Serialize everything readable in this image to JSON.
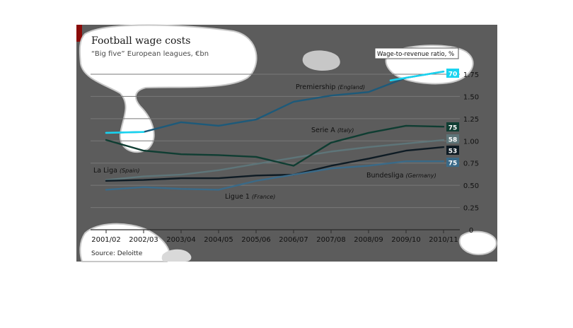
{
  "chart_data": {
    "type": "line",
    "title": "Football wage costs",
    "subtitle": "“Big five” European leagues, €bn",
    "source": "Source: Deloitte",
    "legend_note": "Wage-to-revenue ratio, %",
    "categories": [
      "2001/02",
      "2002/03",
      "2003/04",
      "2004/05",
      "2005/06",
      "2006/07",
      "2007/08",
      "2008/09",
      "2009/10",
      "2010/11"
    ],
    "ylim": [
      0,
      1.75
    ],
    "yticks": [
      "0",
      "0.25",
      "0.50",
      "0.75",
      "1.00",
      "1.25",
      "1.50",
      "1.75"
    ],
    "grid": true,
    "series": [
      {
        "name": "Premiership",
        "country": "(England)",
        "color": "#1d5a7a",
        "highlight": "#19d3f0",
        "values": [
          1.09,
          1.1,
          1.21,
          1.17,
          1.24,
          1.44,
          1.51,
          1.55,
          1.71,
          1.78
        ],
        "end_value": "70"
      },
      {
        "name": "Serie A",
        "country": "(Italy)",
        "color": "#0f3d32",
        "values": [
          1.01,
          0.89,
          0.85,
          0.84,
          0.82,
          0.72,
          0.98,
          1.09,
          1.17,
          1.16
        ],
        "end_value": "75"
      },
      {
        "name": "La Liga",
        "country": "(Spain)",
        "color": "#5e7579",
        "values": [
          0.56,
          0.6,
          0.62,
          0.67,
          0.74,
          0.81,
          0.88,
          0.93,
          0.97,
          1.01
        ],
        "end_value": "58"
      },
      {
        "name": "Bundesliga",
        "country": "(Germany)",
        "color": "#0e1b24",
        "values": [
          0.55,
          0.56,
          0.58,
          0.58,
          0.61,
          0.62,
          0.72,
          0.8,
          0.89,
          0.93
        ],
        "end_value": "53"
      },
      {
        "name": "Ligue 1",
        "country": "(France)",
        "color": "#3a6a88",
        "values": [
          0.45,
          0.48,
          0.46,
          0.45,
          0.55,
          0.62,
          0.69,
          0.72,
          0.77,
          0.77
        ],
        "end_value": "75"
      }
    ]
  },
  "colors": {
    "panel": "#5c5c5c",
    "grid": "#7a7a7a",
    "accent": "#e3120b"
  }
}
